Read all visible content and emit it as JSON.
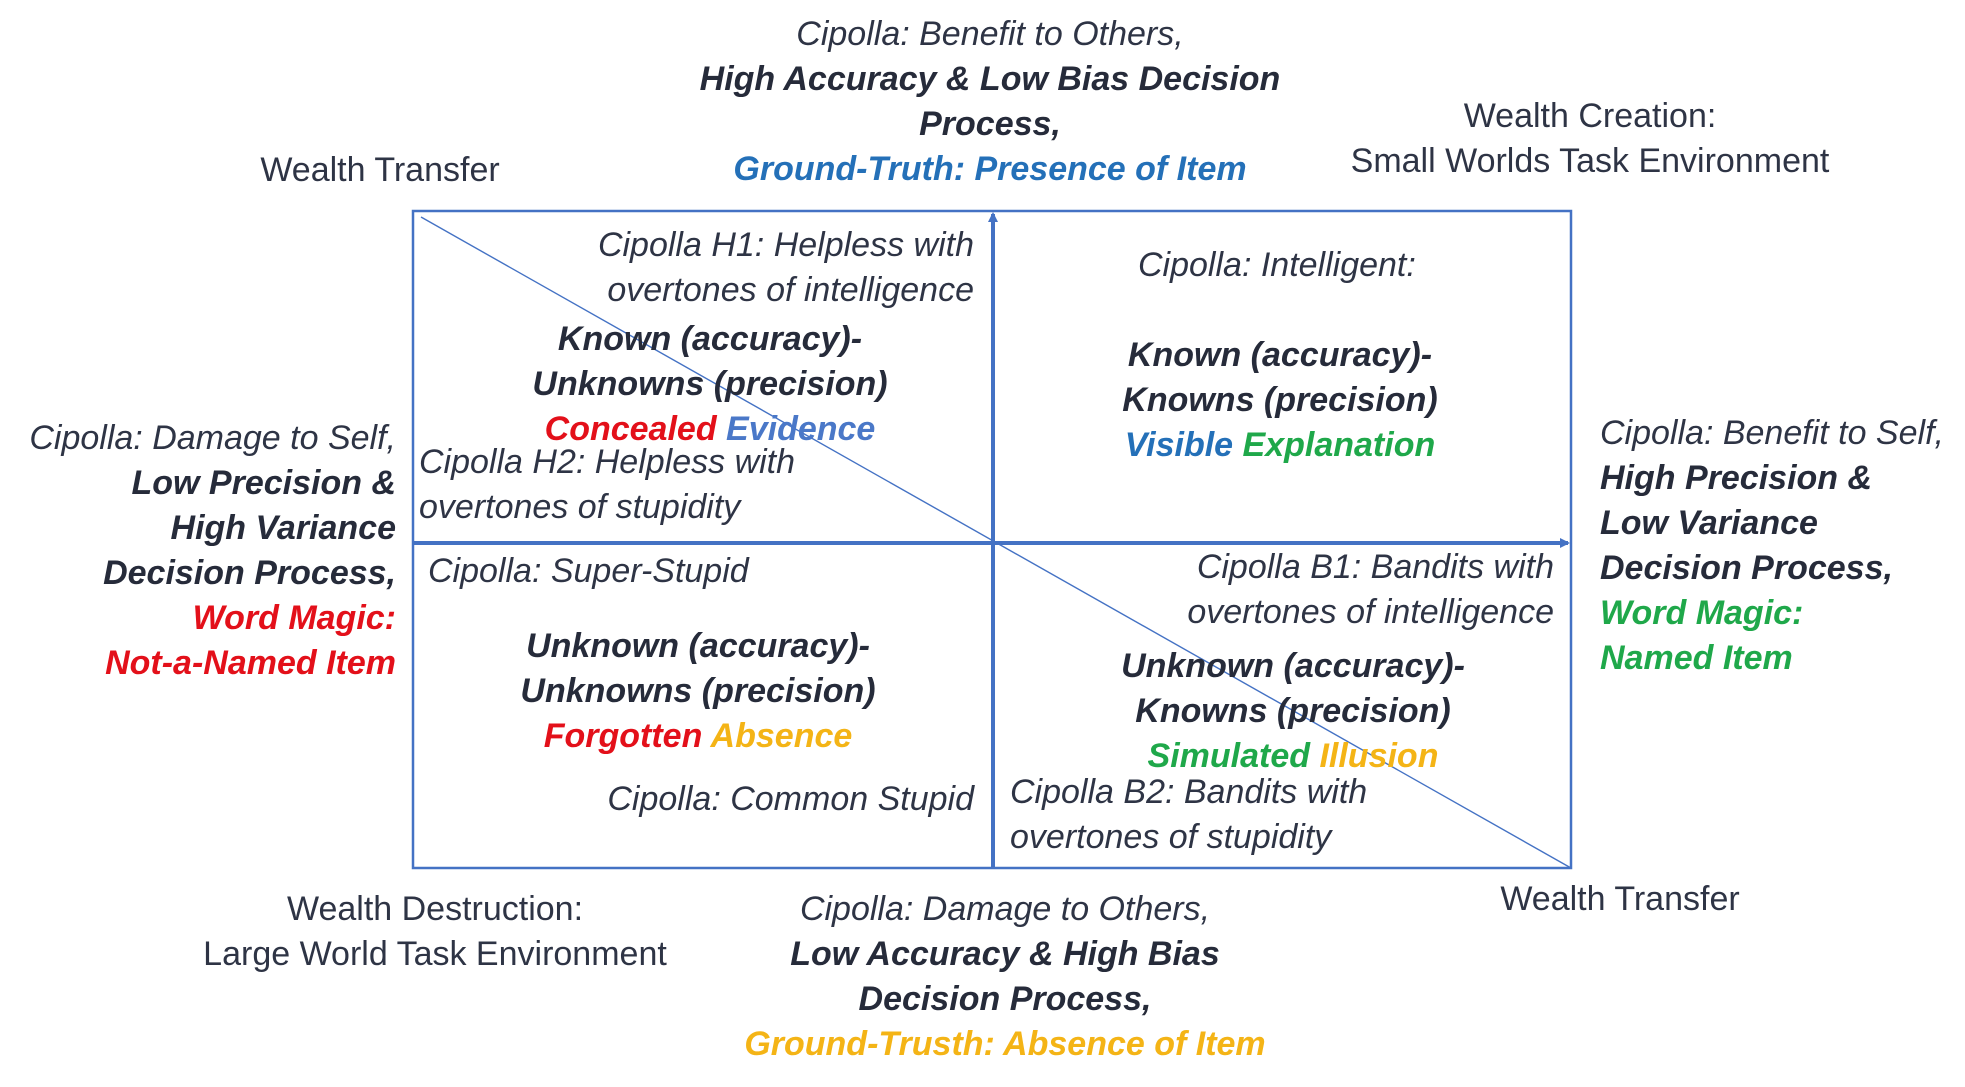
{
  "colors": {
    "axis": "#4472c4",
    "diagonal": "#4472c4",
    "text": "#2e3445",
    "red": "#e3101a",
    "blue": "#2470b8",
    "light_blue": "#4a78c8",
    "green": "#1fa84a",
    "yellow": "#f4b416"
  },
  "corners": {
    "top_left": "Wealth Transfer",
    "top_right": [
      "Wealth Creation:",
      "Small Worlds Task Environment"
    ],
    "bottom_left": [
      "Wealth Destruction:",
      "Large World Task Environment"
    ],
    "bottom_right": "Wealth Transfer"
  },
  "top_axis": {
    "line1": "Cipolla: Benefit to Others,",
    "line2": "High Accuracy & Low Bias Decision",
    "line3": "Process,",
    "line4": "Ground-Truth: Presence of Item"
  },
  "bottom_axis": {
    "line1": "Cipolla: Damage to Others,",
    "line2": "Low Accuracy & High Bias",
    "line3": "Decision Process,",
    "line4": "Ground-Trusth: Absence of Item"
  },
  "left_axis": {
    "line1": "Cipolla: Damage to Self,",
    "line2": "Low Precision &",
    "line3": "High Variance",
    "line4": "Decision Process,",
    "line5": "Word Magic:",
    "line6": "Not-a-Named Item"
  },
  "right_axis": {
    "line1": "Cipolla: Benefit to Self,",
    "line2": "High Precision &",
    "line3": "Low Variance",
    "line4": "Decision Process,",
    "line5": "Word Magic:",
    "line6": "Named Item"
  },
  "quadrants": {
    "top_left": {
      "h1": [
        "Cipolla H1: Helpless with",
        "overtones of intelligence"
      ],
      "main": [
        "Known (accuracy)-",
        "Unknowns (precision)"
      ],
      "tag1": "Concealed",
      "tag2": "Evidence",
      "h2": [
        "Cipolla H2: Helpless with",
        "overtones of stupidity"
      ]
    },
    "top_right": {
      "label": "Cipolla: Intelligent:",
      "main": [
        "Known (accuracy)-",
        "Knowns (precision)"
      ],
      "tag1": "Visible",
      "tag2": "Explanation"
    },
    "bottom_left": {
      "label": "Cipolla: Super-Stupid",
      "main": [
        "Unknown (accuracy)-",
        "Unknowns (precision)"
      ],
      "tag1": "Forgotten",
      "tag2": "Absence",
      "label2": "Cipolla: Common Stupid"
    },
    "bottom_right": {
      "b1": [
        "Cipolla B1: Bandits with",
        "overtones of intelligence"
      ],
      "main": [
        "Unknown (accuracy)-",
        "Knowns (precision)"
      ],
      "tag1": "Simulated",
      "tag2": "Illusion",
      "b2": [
        "Cipolla B2: Bandits with",
        "overtones of stupidity"
      ]
    }
  }
}
